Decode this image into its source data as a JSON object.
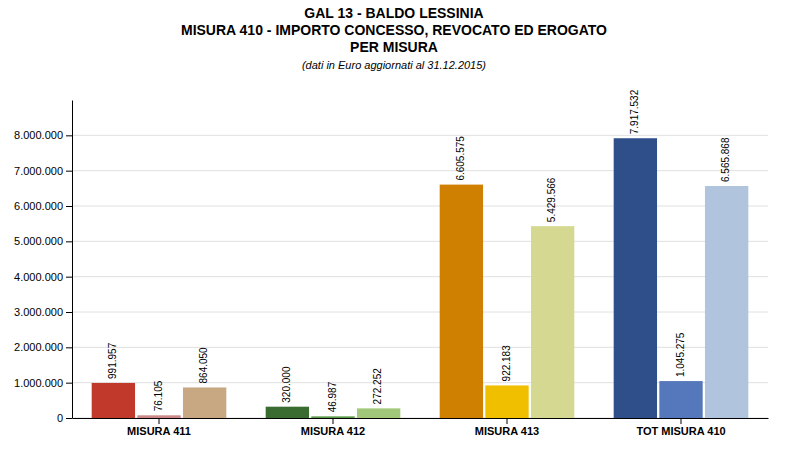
{
  "chart_data": {
    "type": "bar",
    "title": [
      "GAL 13 - BALDO LESSINIA",
      "MISURA 410 - IMPORTO CONCESSO, REVOCATO ED EROGATO",
      "PER MISURA"
    ],
    "subtitle": "(dati in Euro aggiornati al 31.12.2015)",
    "categories": [
      "MISURA 411",
      "MISURA 412",
      "MISURA 413",
      "TOT MISURA 410"
    ],
    "series": [
      {
        "colors": [
          "#c0392b",
          "#3a6b30",
          "#d08000",
          "#2e4f8a"
        ],
        "values": [
          991957,
          320000,
          6605575,
          7917532
        ],
        "value_labels": [
          "991.957",
          "320.000",
          "6.605.575",
          "7.917.532"
        ]
      },
      {
        "colors": [
          "#cc8888",
          "#5a9a48",
          "#f0c000",
          "#5577bb"
        ],
        "values": [
          76105,
          46987,
          922183,
          1045275
        ],
        "value_labels": [
          "76.105",
          "46.987",
          "922.183",
          "1.045.275"
        ]
      },
      {
        "colors": [
          "#c8a882",
          "#a0c878",
          "#d4d890",
          "#b0c4de"
        ],
        "values": [
          864050,
          272252,
          5429566,
          6565868
        ],
        "value_labels": [
          "864.050",
          "272.252",
          "5.429.566",
          "6.565.868"
        ]
      }
    ],
    "ylim": [
      0,
      9000000
    ],
    "yticks": [
      0,
      {
        "value": 1000000,
        "label": "1.000.000"
      },
      {
        "value": 2000000,
        "label": "2.000.000"
      },
      {
        "value": 3000000,
        "label": "3.000.000"
      },
      {
        "value": 4000000,
        "label": "4.000.000"
      },
      {
        "value": 5000000,
        "label": "5.000.000"
      },
      {
        "value": 6000000,
        "label": "6.000.000"
      },
      {
        "value": 7000000,
        "label": "7.000.000"
      },
      {
        "value": 8000000,
        "label": "8.000.000"
      }
    ],
    "grid": true,
    "data_labels": true
  }
}
